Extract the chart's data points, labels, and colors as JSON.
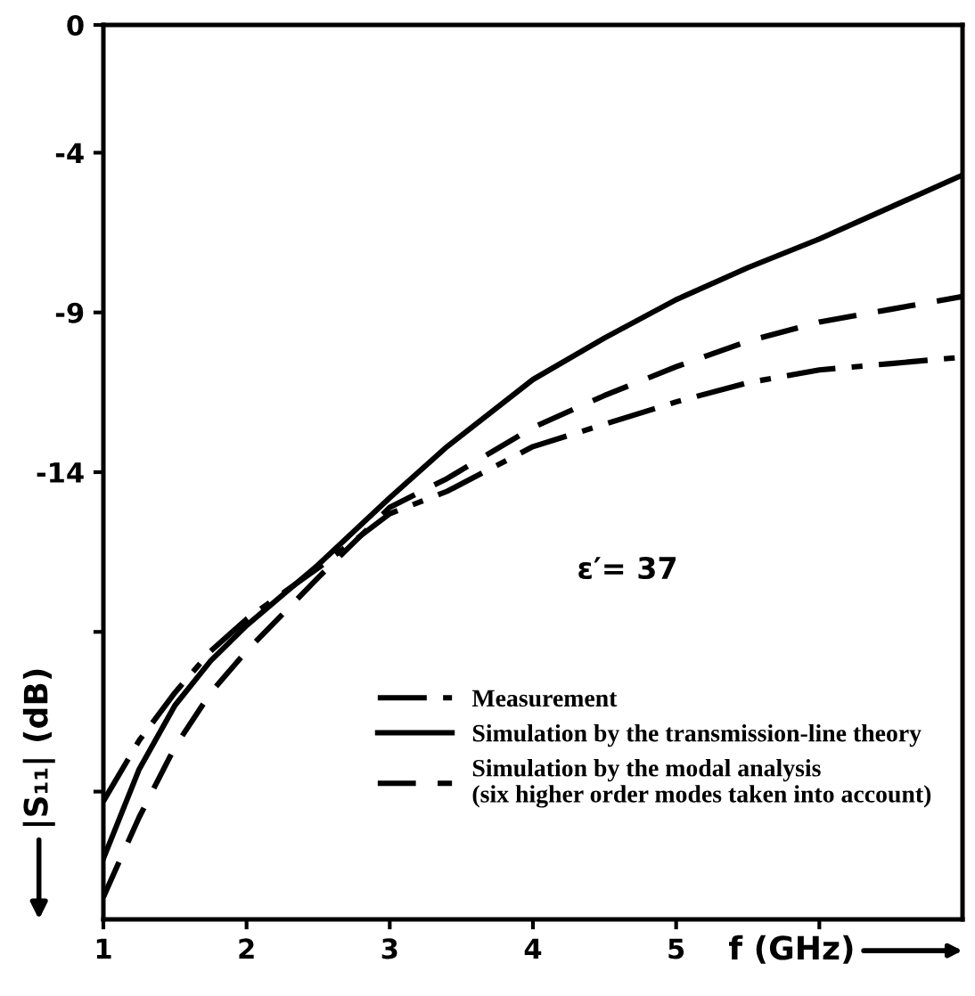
{
  "chart_data": {
    "type": "line",
    "xlabel": "f (GHz)",
    "ylabel": "|S₁₁| (dB)",
    "xlim": [
      1,
      7
    ],
    "xticks": [
      1,
      2,
      3,
      4,
      5,
      {
        "value": 6,
        "label": null
      }
    ],
    "ylim": [
      -28,
      0
    ],
    "yticks": [
      0,
      -4,
      -9,
      -14,
      {
        "value": -19,
        "label": null
      },
      {
        "value": -24,
        "label": null
      }
    ],
    "x": [
      1,
      1.25,
      1.5,
      1.75,
      2,
      2.5,
      3,
      3.4,
      4,
      4.5,
      5,
      5.5,
      6,
      6.5,
      7
    ],
    "series": [
      {
        "name": "Measurement",
        "color": "#000000",
        "line_style": "dashdot",
        "values": [
          -24.3,
          -22.4,
          -20.9,
          -19.6,
          -18.6,
          -17.0,
          -15.3,
          -14.6,
          -13.2,
          -12.5,
          -11.8,
          -11.2,
          -10.8,
          -10.6,
          -10.4
        ]
      },
      {
        "name": "Simulation by the transmission-line theory",
        "color": "#000000",
        "line_style": "solid",
        "values": [
          -26.1,
          -23.3,
          -21.3,
          -19.9,
          -18.8,
          -16.9,
          -14.8,
          -13.2,
          -11.1,
          -9.8,
          -8.6,
          -7.6,
          -6.7,
          -5.7,
          -4.7
        ]
      },
      {
        "name": "Simulation by the modal analysis\n(six higher order modes taken into account)",
        "color": "#000000",
        "line_style": "dashed",
        "values": [
          -27.3,
          -24.8,
          -22.6,
          -20.9,
          -19.6,
          -17.3,
          -15.1,
          -14.2,
          -12.6,
          -11.6,
          -10.7,
          -9.9,
          -9.3,
          -8.9,
          -8.5
        ]
      }
    ],
    "annotations": [
      "ε′= 37"
    ],
    "grid": false,
    "legend": "bottom right"
  }
}
